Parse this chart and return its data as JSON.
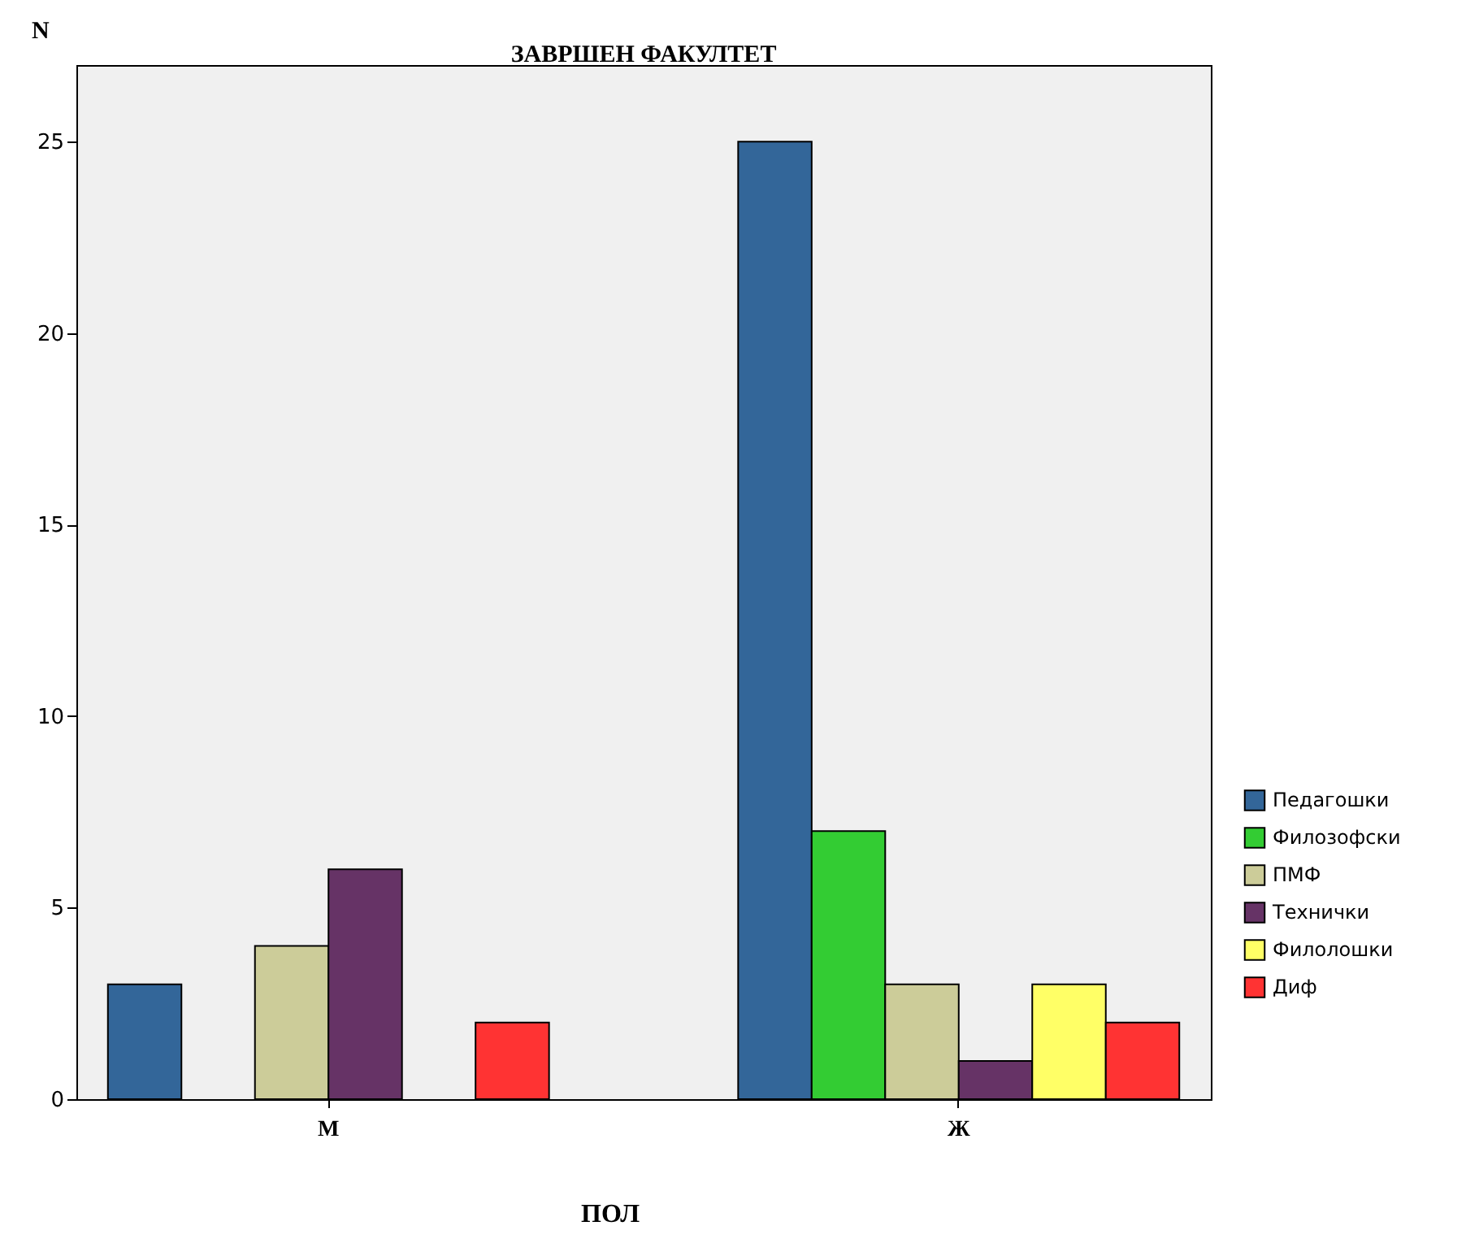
{
  "chart_data": {
    "type": "bar",
    "title": "ЗАВРШЕН ФАКУЛТЕТ",
    "xlabel": "ПОЛ",
    "ylabel": "N",
    "categories": [
      "М",
      "Ж"
    ],
    "series": [
      {
        "name": "Педагошки",
        "color": "#336699",
        "values": [
          3,
          25
        ]
      },
      {
        "name": "Филозофски",
        "color": "#33cc33",
        "values": [
          null,
          7
        ]
      },
      {
        "name": "ПМФ",
        "color": "#cccc99",
        "values": [
          4,
          3
        ]
      },
      {
        "name": "Технички",
        "color": "#663366",
        "values": [
          6,
          1
        ]
      },
      {
        "name": "Филолошки",
        "color": "#ffff66",
        "values": [
          null,
          3
        ]
      },
      {
        "name": "Диф",
        "color": "#ff3333",
        "values": [
          2,
          2
        ]
      }
    ],
    "ylim": [
      0,
      27
    ],
    "yticks": [
      0,
      5,
      10,
      15,
      20,
      25
    ],
    "grid": false,
    "legend": "right"
  }
}
